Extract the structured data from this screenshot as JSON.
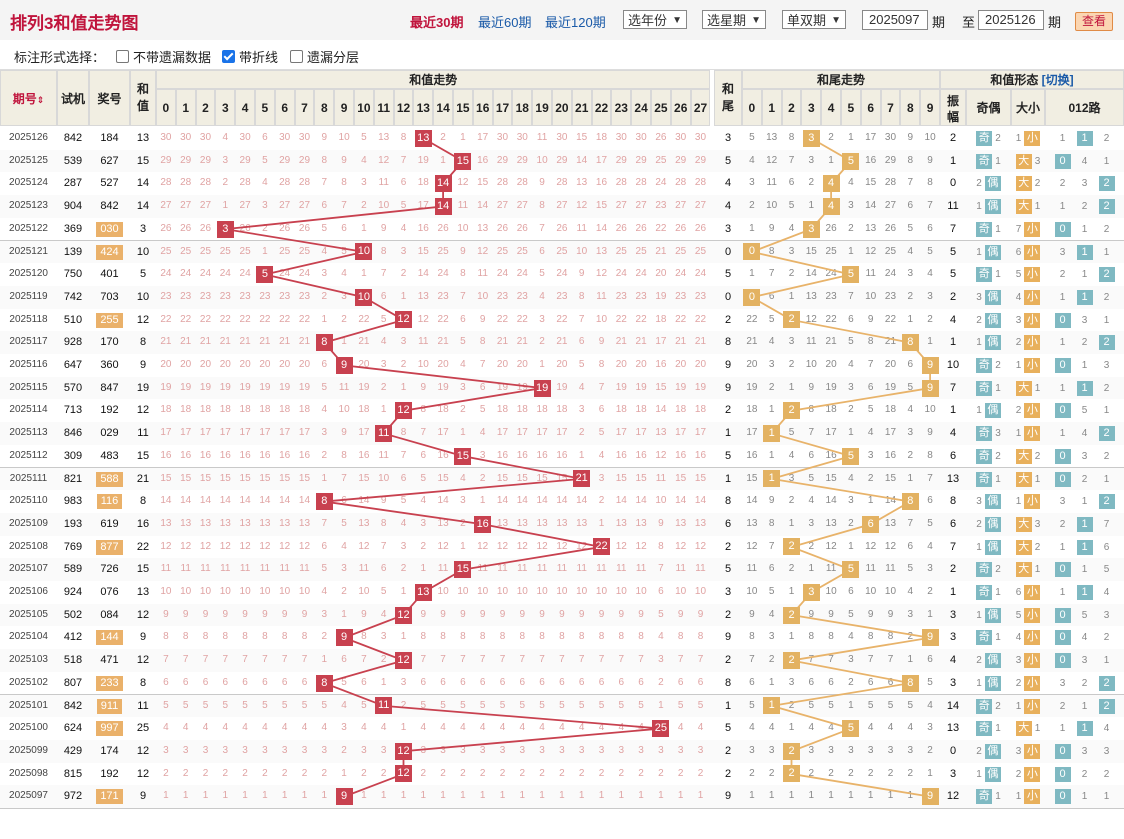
{
  "page_title": "排列3和值走势图",
  "periods": [
    "最近30期",
    "最近60期",
    "最近120期"
  ],
  "active_period": 0,
  "selects": [
    "选年份",
    "选星期",
    "单双期"
  ],
  "range_from": "2025097",
  "range_mid": "期",
  "range_to_label": "至",
  "range_to": "2025126",
  "range_end": "期",
  "view_button": "查看",
  "options_label": "标注形式选择：",
  "options": [
    {
      "label": "不带遗漏数据",
      "checked": false
    },
    {
      "label": "带折线",
      "checked": true
    },
    {
      "label": "遗漏分层",
      "checked": false
    }
  ],
  "headers": {
    "issue": "期号",
    "test": "试机",
    "prize": "奖号",
    "sum": "和值",
    "sum_trend": "和值走势",
    "tail": "和尾",
    "tail_trend": "和尾走势",
    "shape": "和值形态",
    "switch": "[切换]",
    "amp": "振幅",
    "oddeven": "奇偶",
    "bigsmall": "大小",
    "road": "012路"
  },
  "sum_cols": [
    "0",
    "1",
    "2",
    "3",
    "4",
    "5",
    "6",
    "7",
    "8",
    "9",
    "10",
    "11",
    "12",
    "13",
    "14",
    "15",
    "16",
    "17",
    "18",
    "19",
    "20",
    "21",
    "22",
    "23",
    "24",
    "25",
    "26",
    "27"
  ],
  "tail_cols": [
    "0",
    "1",
    "2",
    "3",
    "4",
    "5",
    "6",
    "7",
    "8",
    "9"
  ],
  "labels": {
    "odd": "奇",
    "even": "偶",
    "big": "大",
    "small": "小"
  },
  "rows": [
    {
      "issue": "2025126",
      "test": "842",
      "prize": "184",
      "sum": 13,
      "tail": 3,
      "amp": 2,
      "odd": true,
      "big": false,
      "road": 1,
      "hl": false
    },
    {
      "issue": "2025125",
      "test": "539",
      "prize": "627",
      "sum": 15,
      "tail": 5,
      "amp": 1,
      "odd": true,
      "big": true,
      "road": 0,
      "hl": false
    },
    {
      "issue": "2025124",
      "test": "287",
      "prize": "527",
      "sum": 14,
      "tail": 4,
      "amp": 0,
      "odd": false,
      "big": true,
      "road": 2,
      "hl": false
    },
    {
      "issue": "2025123",
      "test": "904",
      "prize": "842",
      "sum": 14,
      "tail": 4,
      "amp": 11,
      "odd": false,
      "big": true,
      "road": 2,
      "hl": false
    },
    {
      "issue": "2025122",
      "test": "369",
      "prize": "030",
      "sum": 3,
      "tail": 3,
      "amp": 7,
      "odd": true,
      "big": false,
      "road": 0,
      "hl": true
    },
    {
      "issue": "2025121",
      "test": "139",
      "prize": "424",
      "sum": 10,
      "tail": 0,
      "amp": 5,
      "odd": false,
      "big": false,
      "road": 1,
      "hl": true
    },
    {
      "issue": "2025120",
      "test": "750",
      "prize": "401",
      "sum": 5,
      "tail": 5,
      "amp": 5,
      "odd": true,
      "big": false,
      "road": 2,
      "hl": false
    },
    {
      "issue": "2025119",
      "test": "742",
      "prize": "703",
      "sum": 10,
      "tail": 0,
      "amp": 2,
      "odd": false,
      "big": false,
      "road": 1,
      "hl": false
    },
    {
      "issue": "2025118",
      "test": "510",
      "prize": "255",
      "sum": 12,
      "tail": 2,
      "amp": 4,
      "odd": false,
      "big": false,
      "road": 0,
      "hl": true
    },
    {
      "issue": "2025117",
      "test": "928",
      "prize": "170",
      "sum": 8,
      "tail": 8,
      "amp": 1,
      "odd": false,
      "big": false,
      "road": 2,
      "hl": false
    },
    {
      "issue": "2025116",
      "test": "647",
      "prize": "360",
      "sum": 9,
      "tail": 9,
      "amp": 10,
      "odd": true,
      "big": false,
      "road": 0,
      "hl": false
    },
    {
      "issue": "2025115",
      "test": "570",
      "prize": "847",
      "sum": 19,
      "tail": 9,
      "amp": 7,
      "odd": true,
      "big": true,
      "road": 1,
      "hl": false
    },
    {
      "issue": "2025114",
      "test": "713",
      "prize": "192",
      "sum": 12,
      "tail": 2,
      "amp": 1,
      "odd": false,
      "big": false,
      "road": 0,
      "hl": false
    },
    {
      "issue": "2025113",
      "test": "846",
      "prize": "029",
      "sum": 11,
      "tail": 1,
      "amp": 4,
      "odd": true,
      "big": false,
      "road": 2,
      "hl": false
    },
    {
      "issue": "2025112",
      "test": "309",
      "prize": "483",
      "sum": 15,
      "tail": 5,
      "amp": 6,
      "odd": true,
      "big": true,
      "road": 0,
      "hl": false
    },
    {
      "issue": "2025111",
      "test": "821",
      "prize": "588",
      "sum": 21,
      "tail": 1,
      "amp": 13,
      "odd": true,
      "big": true,
      "road": 0,
      "hl": true
    },
    {
      "issue": "2025110",
      "test": "983",
      "prize": "116",
      "sum": 8,
      "tail": 8,
      "amp": 8,
      "odd": false,
      "big": false,
      "road": 2,
      "hl": true
    },
    {
      "issue": "2025109",
      "test": "193",
      "prize": "619",
      "sum": 16,
      "tail": 6,
      "amp": 6,
      "odd": false,
      "big": true,
      "road": 1,
      "hl": false
    },
    {
      "issue": "2025108",
      "test": "769",
      "prize": "877",
      "sum": 22,
      "tail": 2,
      "amp": 7,
      "odd": false,
      "big": true,
      "road": 1,
      "hl": true
    },
    {
      "issue": "2025107",
      "test": "589",
      "prize": "726",
      "sum": 15,
      "tail": 5,
      "amp": 2,
      "odd": true,
      "big": true,
      "road": 0,
      "hl": false
    },
    {
      "issue": "2025106",
      "test": "924",
      "prize": "076",
      "sum": 13,
      "tail": 3,
      "amp": 1,
      "odd": true,
      "big": false,
      "road": 1,
      "hl": false
    },
    {
      "issue": "2025105",
      "test": "502",
      "prize": "084",
      "sum": 12,
      "tail": 2,
      "amp": 3,
      "odd": false,
      "big": false,
      "road": 0,
      "hl": false
    },
    {
      "issue": "2025104",
      "test": "412",
      "prize": "144",
      "sum": 9,
      "tail": 9,
      "amp": 3,
      "odd": true,
      "big": false,
      "road": 0,
      "hl": true
    },
    {
      "issue": "2025103",
      "test": "518",
      "prize": "471",
      "sum": 12,
      "tail": 2,
      "amp": 4,
      "odd": false,
      "big": false,
      "road": 0,
      "hl": false
    },
    {
      "issue": "2025102",
      "test": "807",
      "prize": "233",
      "sum": 8,
      "tail": 8,
      "amp": 3,
      "odd": false,
      "big": false,
      "road": 2,
      "hl": true
    },
    {
      "issue": "2025101",
      "test": "842",
      "prize": "911",
      "sum": 11,
      "tail": 1,
      "amp": 14,
      "odd": true,
      "big": false,
      "road": 2,
      "hl": true
    },
    {
      "issue": "2025100",
      "test": "624",
      "prize": "997",
      "sum": 25,
      "tail": 5,
      "amp": 13,
      "odd": true,
      "big": true,
      "road": 1,
      "hl": true
    },
    {
      "issue": "2025099",
      "test": "429",
      "prize": "174",
      "sum": 12,
      "tail": 2,
      "amp": 0,
      "odd": false,
      "big": false,
      "road": 0,
      "hl": false
    },
    {
      "issue": "2025098",
      "test": "815",
      "prize": "192",
      "sum": 12,
      "tail": 2,
      "amp": 3,
      "odd": false,
      "big": false,
      "road": 0,
      "hl": false
    },
    {
      "issue": "2025097",
      "test": "972",
      "prize": "171",
      "sum": 9,
      "tail": 9,
      "amp": 12,
      "odd": true,
      "big": false,
      "road": 0,
      "hl": true
    }
  ]
}
